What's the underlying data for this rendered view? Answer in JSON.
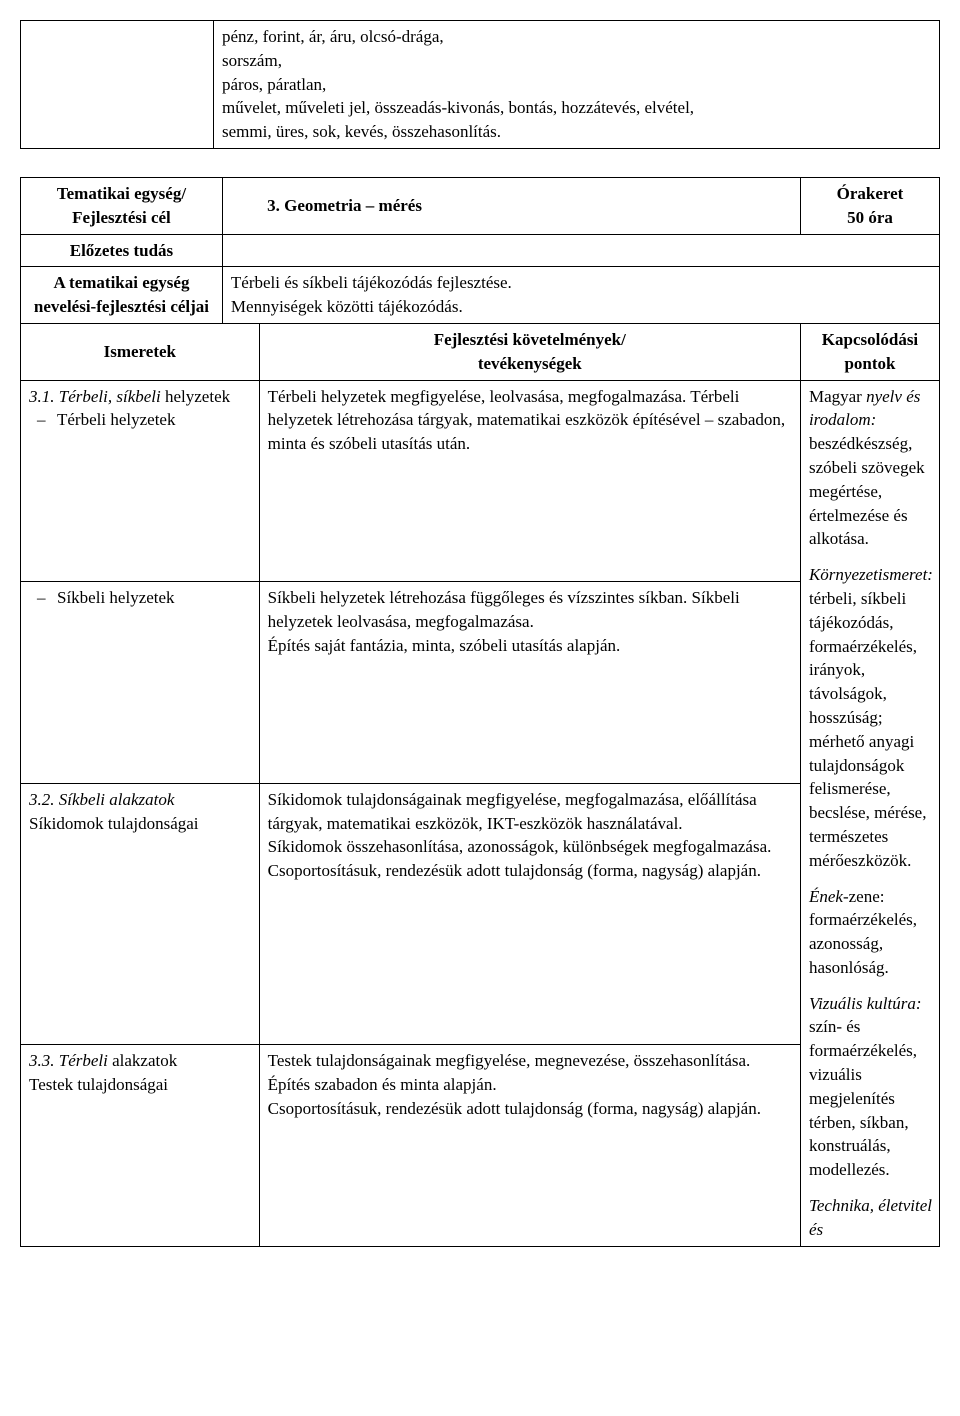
{
  "topBox": {
    "content": "pénz, forint, ár, áru, olcsó-drága,\nsorszám,\npáros, páratlan,\nművelet, műveleti jel, összeadás-kivonás, bontás, hozzátevés, elvétel,\nsemmi, üres, sok, kevés, összehasonlítás."
  },
  "headerTable": {
    "thematicUnitLabel": "Tematikai egység/\nFejlesztési cél",
    "title": "3.   Geometria – mérés",
    "timeFrameLabel": "Órakeret\n50 óra",
    "priorKnowledgeLabel": "Előzetes tudás",
    "goalsLabel": "A tematikai egység nevelési-fejlesztési céljai",
    "goalsText": "Térbeli és síkbeli tájékozódás fejlesztése.\nMennyiségek közötti tájékozódás."
  },
  "columnsHeader": {
    "knowledge": "Ismeretek",
    "requirements": "Fejlesztési követelmények/\ntevékenységek",
    "connections": "Kapcsolódási pontok"
  },
  "rows": {
    "r1": {
      "title": "3.1. Térbeli, síkbeli ",
      "titleItalic": "helyzetek",
      "sub1": "Térbeli helyzetek",
      "activity": "Térbeli helyzetek megfigyelése, leolvasása, megfogalmazása. Térbeli helyzetek létrehozása tárgyak, matematikai eszközök építésével – szabadon, minta és szóbeli utasítás után."
    },
    "r2": {
      "sub": "Síkbeli helyzetek",
      "activity": "Síkbeli helyzetek létrehozása függőleges és vízszintes síkban. Síkbeli helyzetek leolvasása, megfogalmazása.\nÉpítés saját fantázia, minta, szóbeli utasítás alapján."
    },
    "r3": {
      "title": "3.2. Síkbeli alakzatok",
      "sub": "Síkidomok tulajdonságai",
      "activity": "Síkidomok tulajdonságainak megfigyelése, megfogalmazása, előállítása tárgyak, matematikai eszközök, IKT-eszközök használatával.\nSíkidomok összehasonlítása, azonosságok, különbségek megfogalmazása.\nCsoportosításuk, rendezésük adott tulajdonság (forma, nagyság) alapján."
    },
    "r4": {
      "title": "3.3. Térbeli ",
      "titleRest": "alakzatok",
      "sub": "Testek tulajdonságai",
      "activity": "Testek tulajdonságainak megfigyelése, megnevezése, összehasonlítása.\nÉpítés szabadon és minta alapján.\nCsoportosításuk, rendezésük adott tulajdonság (forma, nagyság) alapján."
    }
  },
  "connections": {
    "p1_prefix": "Magyar ",
    "p1_italic": "nyelv és irodalom:",
    "p1_rest": " beszédkészség, szóbeli szövegek megértése, értelmezése és alkotása.",
    "p2_italic": "Környezetismeret:",
    "p2_rest": " térbeli, síkbeli tájékozódás, formaérzékelés, irányok, távolságok, hosszúság; mérhető anyagi tulajdonságok felismerése, becslése, mérése, természetes mérőeszközök.",
    "p3_italic": "Ének",
    "p3_rest": "-zene: formaérzékelés, azonosság, hasonlóság.",
    "p4_italic": "Vizuális kultúra: ",
    "p4_rest": "szín- és formaérzékelés, vizuális megjelenítés térben, síkban, konstruálás, modellezés.",
    "p5_italic": "Technika, életvitel és"
  }
}
